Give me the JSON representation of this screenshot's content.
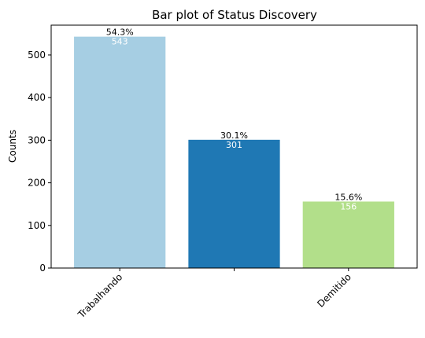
{
  "chart_data": {
    "type": "bar",
    "title": "Bar plot of Status Discovery",
    "xlabel": "",
    "ylabel": "Counts",
    "categories": [
      "Trabalhando",
      "",
      "Demitido"
    ],
    "values": [
      543,
      301,
      156
    ],
    "percent_labels": [
      "54.3%",
      "30.1%",
      "15.6%"
    ],
    "value_labels": [
      "543",
      "301",
      "156"
    ],
    "colors": [
      "#a6cee3",
      "#1f78b4",
      "#b2df8a"
    ],
    "ylim": [
      0,
      570
    ],
    "yticks": [
      0,
      100,
      200,
      300,
      400,
      500
    ],
    "grid": false
  }
}
